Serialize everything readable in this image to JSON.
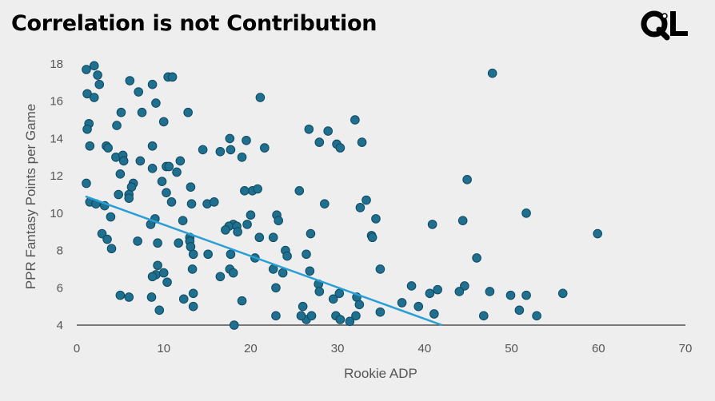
{
  "header": {
    "title": "Correlation is not Contribution",
    "logo_text": "QL"
  },
  "colors": {
    "background": "#eeeeee",
    "marker_fill": "#1f6f8f",
    "marker_stroke": "#0d4a63",
    "trendline": "#2a9fd6",
    "axis": "#333333",
    "text": "#555555"
  },
  "chart_data": {
    "type": "scatter",
    "xlabel": "Rookie ADP",
    "ylabel": "PPR Fantasy Points per Game",
    "xlim": [
      0,
      70
    ],
    "ylim": [
      4,
      18
    ],
    "xticks": [
      0,
      10,
      20,
      30,
      40,
      50,
      60,
      70
    ],
    "yticks": [
      4,
      6,
      8,
      10,
      12,
      14,
      16,
      18
    ],
    "grid": false,
    "legend": "none",
    "trendline": {
      "x": [
        1,
        42
      ],
      "y": [
        10.9,
        4.0
      ]
    },
    "points": [
      [
        1.1,
        17.7
      ],
      [
        2.0,
        17.9
      ],
      [
        2.4,
        17.4
      ],
      [
        2.6,
        16.9
      ],
      [
        1.2,
        16.4
      ],
      [
        2.0,
        16.2
      ],
      [
        1.4,
        14.8
      ],
      [
        1.2,
        14.5
      ],
      [
        1.5,
        13.6
      ],
      [
        1.1,
        11.6
      ],
      [
        1.5,
        10.6
      ],
      [
        2.2,
        10.5
      ],
      [
        3.2,
        10.4
      ],
      [
        3.4,
        13.6
      ],
      [
        3.6,
        13.5
      ],
      [
        4.5,
        13.0
      ],
      [
        5.3,
        13.1
      ],
      [
        5.1,
        15.4
      ],
      [
        4.6,
        14.7
      ],
      [
        6.1,
        17.1
      ],
      [
        7.1,
        16.5
      ],
      [
        8.7,
        16.9
      ],
      [
        10.5,
        17.3
      ],
      [
        11.0,
        17.3
      ],
      [
        7.5,
        15.4
      ],
      [
        9.1,
        15.9
      ],
      [
        10.0,
        14.9
      ],
      [
        12.8,
        15.4
      ],
      [
        8.7,
        13.6
      ],
      [
        5.4,
        12.8
      ],
      [
        7.3,
        12.8
      ],
      [
        5.0,
        12.1
      ],
      [
        6.5,
        11.6
      ],
      [
        6.3,
        11.4
      ],
      [
        4.8,
        11.0
      ],
      [
        6.0,
        11.0
      ],
      [
        6.0,
        10.8
      ],
      [
        3.9,
        9.8
      ],
      [
        8.7,
        12.4
      ],
      [
        10.3,
        12.5
      ],
      [
        10.6,
        12.5
      ],
      [
        11.9,
        12.8
      ],
      [
        11.5,
        12.2
      ],
      [
        9.8,
        11.7
      ],
      [
        10.3,
        11.1
      ],
      [
        10.9,
        10.6
      ],
      [
        9.0,
        9.7
      ],
      [
        8.5,
        9.4
      ],
      [
        12.2,
        9.6
      ],
      [
        2.9,
        8.9
      ],
      [
        3.5,
        8.6
      ],
      [
        4.0,
        8.1
      ],
      [
        7.0,
        8.5
      ],
      [
        9.3,
        8.4
      ],
      [
        11.7,
        8.4
      ],
      [
        13.0,
        8.7
      ],
      [
        13.0,
        8.5
      ],
      [
        13.1,
        8.2
      ],
      [
        13.4,
        7.8
      ],
      [
        15.1,
        7.8
      ],
      [
        13.1,
        11.4
      ],
      [
        13.2,
        10.5
      ],
      [
        15.0,
        10.5
      ],
      [
        15.8,
        10.6
      ],
      [
        16.5,
        13.3
      ],
      [
        14.5,
        13.4
      ],
      [
        17.6,
        14.0
      ],
      [
        19.5,
        13.9
      ],
      [
        17.7,
        13.4
      ],
      [
        19.0,
        13.0
      ],
      [
        20.2,
        11.2
      ],
      [
        21.1,
        16.2
      ],
      [
        21.6,
        13.5
      ],
      [
        20.8,
        11.3
      ],
      [
        19.3,
        11.2
      ],
      [
        18.0,
        9.4
      ],
      [
        17.5,
        9.3
      ],
      [
        18.4,
        9.3
      ],
      [
        17.1,
        9.1
      ],
      [
        18.5,
        9.0
      ],
      [
        19.6,
        9.4
      ],
      [
        20.0,
        9.9
      ],
      [
        21.0,
        8.7
      ],
      [
        17.7,
        7.8
      ],
      [
        20.5,
        7.6
      ],
      [
        17.6,
        7.0
      ],
      [
        18.0,
        6.8
      ],
      [
        16.5,
        6.6
      ],
      [
        9.3,
        7.2
      ],
      [
        9.1,
        6.7
      ],
      [
        8.7,
        6.6
      ],
      [
        10.0,
        6.8
      ],
      [
        10.4,
        6.3
      ],
      [
        13.3,
        7.0
      ],
      [
        12.3,
        5.4
      ],
      [
        13.4,
        5.7
      ],
      [
        13.4,
        5.0
      ],
      [
        8.6,
        5.5
      ],
      [
        9.5,
        4.8
      ],
      [
        5.0,
        5.6
      ],
      [
        6.0,
        5.5
      ],
      [
        19.0,
        5.3
      ],
      [
        18.1,
        4.0
      ],
      [
        23.0,
        9.9
      ],
      [
        23.2,
        9.6
      ],
      [
        22.6,
        8.7
      ],
      [
        24.0,
        8.0
      ],
      [
        24.2,
        7.7
      ],
      [
        22.6,
        7.0
      ],
      [
        23.7,
        6.8
      ],
      [
        22.9,
        6.0
      ],
      [
        22.9,
        4.5
      ],
      [
        25.6,
        11.2
      ],
      [
        26.7,
        14.5
      ],
      [
        27.9,
        13.8
      ],
      [
        28.9,
        14.4
      ],
      [
        29.9,
        13.7
      ],
      [
        30.3,
        13.5
      ],
      [
        32.0,
        15.0
      ],
      [
        32.8,
        13.8
      ],
      [
        28.5,
        10.5
      ],
      [
        26.9,
        8.9
      ],
      [
        26.4,
        7.8
      ],
      [
        26.8,
        6.9
      ],
      [
        27.8,
        6.2
      ],
      [
        27.9,
        5.8
      ],
      [
        26.0,
        5.0
      ],
      [
        26.4,
        4.3
      ],
      [
        27.0,
        4.5
      ],
      [
        25.8,
        4.5
      ],
      [
        29.5,
        5.4
      ],
      [
        30.2,
        5.7
      ],
      [
        29.8,
        4.5
      ],
      [
        30.3,
        4.3
      ],
      [
        31.4,
        4.2
      ],
      [
        32.1,
        4.5
      ],
      [
        32.2,
        5.5
      ],
      [
        32.5,
        5.1
      ],
      [
        32.6,
        10.3
      ],
      [
        33.3,
        10.7
      ],
      [
        34.4,
        9.7
      ],
      [
        33.9,
        8.8
      ],
      [
        34.0,
        8.7
      ],
      [
        34.9,
        7.0
      ],
      [
        34.9,
        4.7
      ],
      [
        37.4,
        5.2
      ],
      [
        38.5,
        6.1
      ],
      [
        39.3,
        5.0
      ],
      [
        40.6,
        5.7
      ],
      [
        41.5,
        5.9
      ],
      [
        41.1,
        4.6
      ],
      [
        40.9,
        9.4
      ],
      [
        44.4,
        9.6
      ],
      [
        44.9,
        11.8
      ],
      [
        44.6,
        6.1
      ],
      [
        44.0,
        5.8
      ],
      [
        46.0,
        7.6
      ],
      [
        47.5,
        5.8
      ],
      [
        47.8,
        17.5
      ],
      [
        46.8,
        4.5
      ],
      [
        49.9,
        5.6
      ],
      [
        51.7,
        10.0
      ],
      [
        51.7,
        5.6
      ],
      [
        50.9,
        4.8
      ],
      [
        52.9,
        4.5
      ],
      [
        55.9,
        5.7
      ],
      [
        59.9,
        8.9
      ]
    ]
  }
}
